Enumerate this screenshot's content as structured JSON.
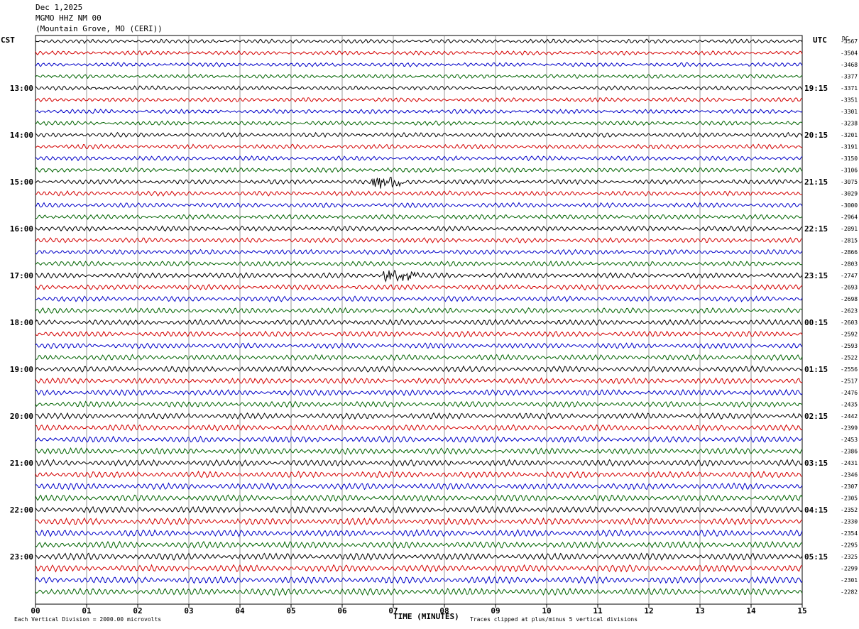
{
  "header": {
    "date": "Dec 1,2025",
    "station": "MGMO HHZ NM 00",
    "location": "(Mountain Grove, MO (CERI))"
  },
  "left_tz": "CST",
  "right_tz": "UTC",
  "dc_label": "DC",
  "footer": {
    "scale_note": "Each Vertical Division = 2000.00 microvolts",
    "xlabel": "TIME (MINUTES)",
    "clip_note": "Traces clipped at plus/minus 5 vertical divisions"
  },
  "colors": {
    "cycle": [
      "#000000",
      "#d40000",
      "#0000c8",
      "#006400"
    ],
    "grid": "#808080"
  },
  "chart_data": {
    "type": "line",
    "xlabel": "TIME (MINUTES)",
    "xlim": [
      0,
      15
    ],
    "x_ticks": [
      "00",
      "01",
      "02",
      "03",
      "04",
      "05",
      "06",
      "07",
      "08",
      "09",
      "10",
      "11",
      "12",
      "13",
      "14",
      "15"
    ],
    "left_hour_labels": [
      "13:00",
      "14:00",
      "15:00",
      "16:00",
      "17:00",
      "18:00",
      "19:00",
      "20:00",
      "21:00",
      "22:00",
      "23:00"
    ],
    "right_hour_labels": [
      "19:15",
      "20:15",
      "21:15",
      "22:15",
      "23:15",
      "00:15",
      "01:15",
      "02:15",
      "03:15",
      "04:15",
      "05:15"
    ],
    "traces_per_hour": 4,
    "dc_offsets": [
      -3567,
      -3504,
      -3468,
      -3377,
      -3371,
      -3351,
      -3301,
      -3238,
      -3201,
      -3191,
      -3150,
      -3106,
      -3075,
      -3029,
      -3000,
      -2964,
      -2891,
      -2815,
      -2866,
      -2803,
      -2747,
      -2693,
      -2698,
      -2623,
      -2603,
      -2592,
      -2593,
      -2522,
      -2556,
      -2517,
      -2476,
      -2435,
      -2442,
      -2399,
      -2453,
      -2386,
      -2431,
      -2346,
      -2307,
      -2305,
      -2352,
      -2330,
      -2354,
      -2295,
      -2325,
      -2299,
      -2301,
      -2282
    ],
    "events": [
      {
        "trace_index": 12,
        "minute_start": 6.6,
        "minute_end": 7.2,
        "note": "burst"
      },
      {
        "trace_index": 20,
        "minute_start": 6.8,
        "minute_end": 7.5,
        "note": "burst"
      }
    ]
  }
}
